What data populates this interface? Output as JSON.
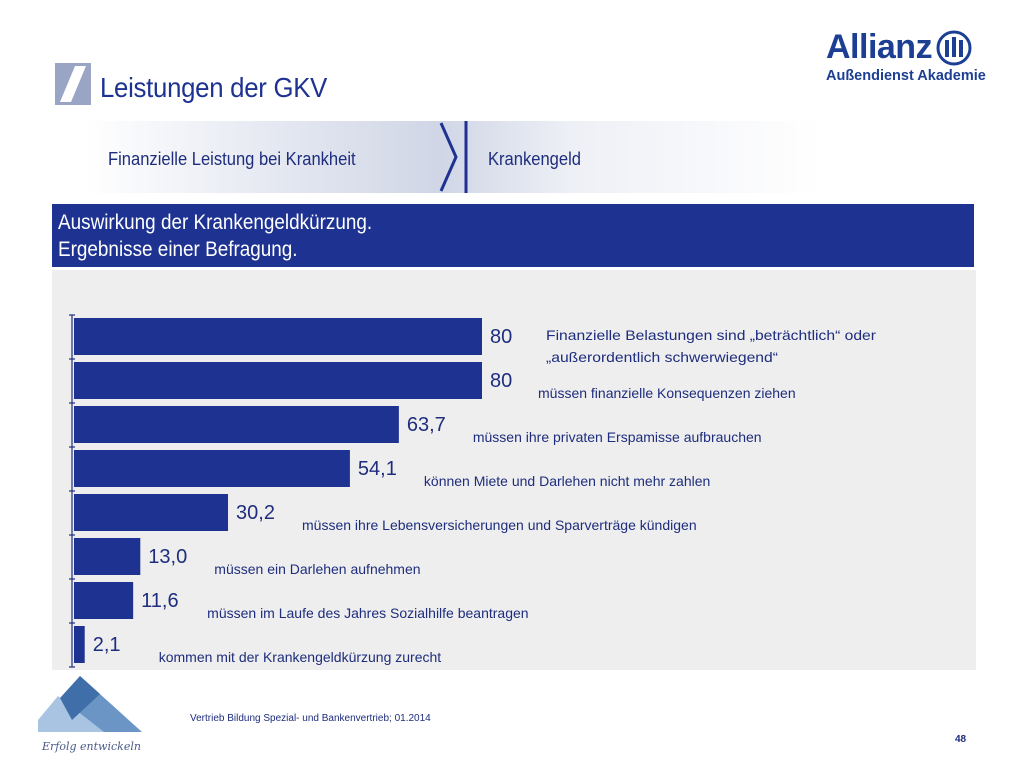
{
  "page": {
    "title": "Leistungen der GKV",
    "breadcrumb": [
      "Finanzielle Leistung bei Krankheit",
      "Krankengeld"
    ],
    "header_lines": [
      "Auswirkung der Krankengeldkürzung.",
      "Ergebnisse einer Befragung."
    ],
    "logo_name": "Allianz",
    "logo_sub": "Außendienst Akademie",
    "footer_text": "Vertrieb Bildung Spezial- und Bankenvertrieb; 01.2014",
    "footer_logo_script": "Erfolg entwickeln",
    "page_number": "48"
  },
  "colors": {
    "primary": "#1e3291",
    "bar": "#1e3291",
    "panel": "#eeeeee",
    "text": "#1e2d7d"
  },
  "chart_data": {
    "type": "bar",
    "orientation": "horizontal",
    "categories": [
      "Finanzielle Belastungen sind „beträchtlich“ oder „außerordentlich schwerwiegend“",
      "müssen finanzielle Konsequenzen ziehen",
      "müssen ihre privaten Erspamisse aufbrauchen",
      "können Miete und Darlehen nicht mehr zahlen",
      "müssen ihre Lebensversicherungen und Sparverträge kündigen",
      "müssen ein Darlehen aufnehmen",
      "müssen im Laufe des Jahres Sozialhilfe beantragen",
      "kommen mit der Krankengeldkürzung zurecht"
    ],
    "values": [
      80,
      80,
      63.7,
      54.1,
      30.2,
      13.0,
      11.6,
      2.1
    ],
    "value_labels": [
      "80",
      "80",
      "63,7",
      "54,1",
      "30,2",
      "13,0",
      "11,6",
      "2,1"
    ],
    "xlim": [
      0,
      100
    ],
    "title": "",
    "xlabel": "",
    "ylabel": "",
    "grid": false,
    "legend": "none"
  }
}
